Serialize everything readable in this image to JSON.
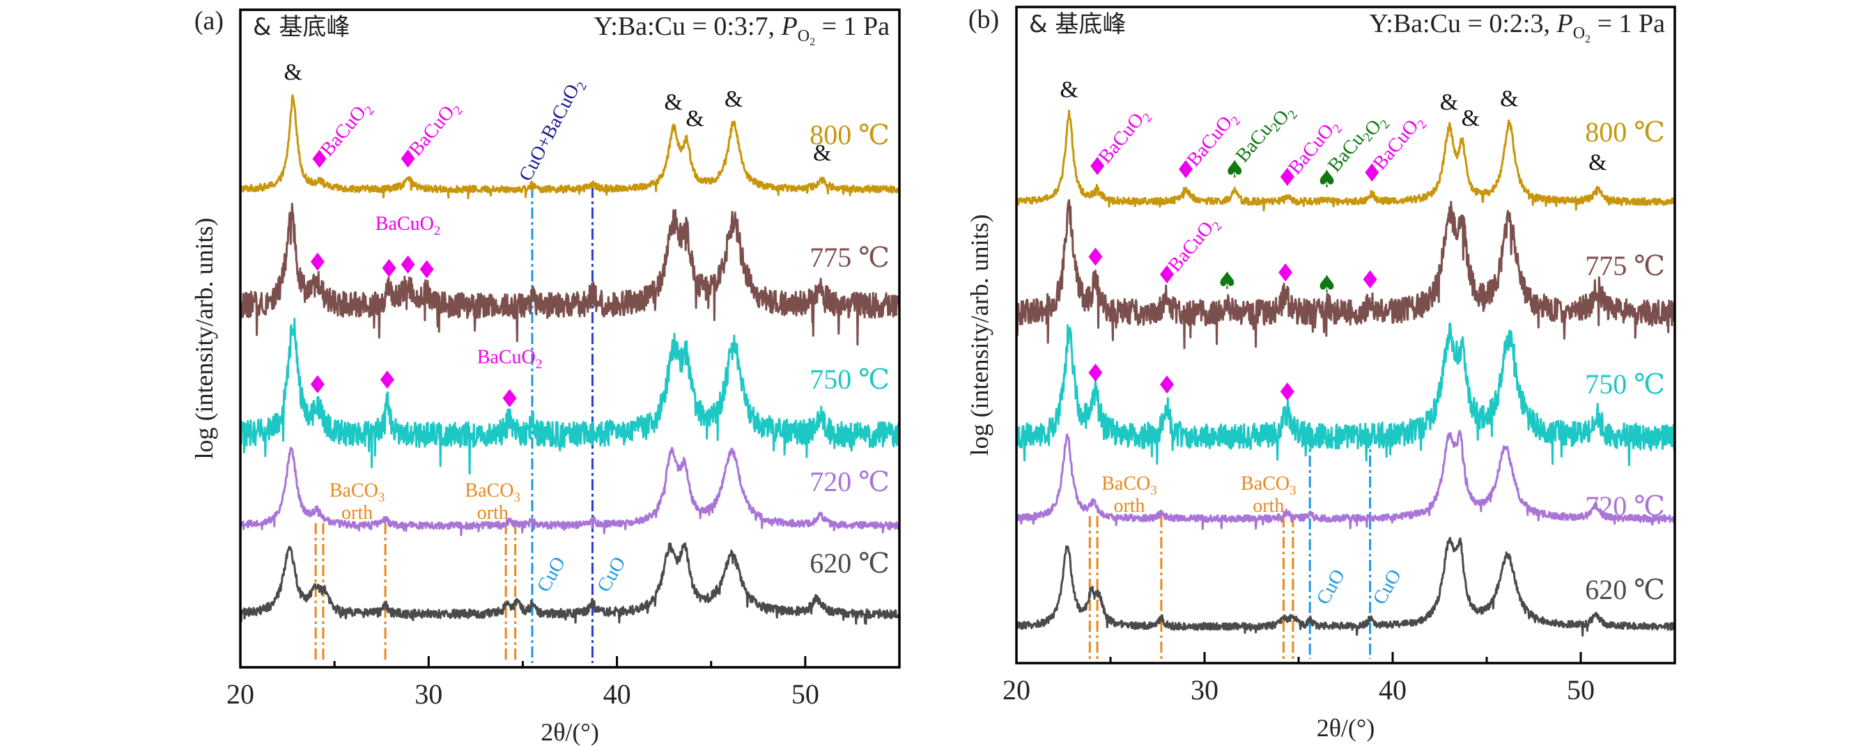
{
  "chart_data": [
    {
      "type": "line",
      "panel_tag": "(a)",
      "legend_text": "& 基底峰",
      "condition": {
        "ratio_text": "Y:Ba:Cu = 0:3:7, ",
        "p_symbol": "P",
        "p_sub": "O",
        "p_subsub": "2",
        "p_value": " = 1 Pa"
      },
      "xlabel": "2θ/(°)",
      "ylabel": "log (intensity/arb. units)",
      "xlim": [
        20,
        55
      ],
      "xticks": [
        20,
        30,
        40,
        50
      ],
      "minor_xticks": [
        25,
        35,
        45
      ],
      "yticks": [],
      "grid": false,
      "series": [
        {
          "name": "800 ℃",
          "label": "800 ℃",
          "color": "#C8960C",
          "noise": 0.35,
          "offset": 0.0,
          "peaks": [
            [
              22.8,
              9.5,
              0.25
            ],
            [
              24.2,
              0.7,
              0.25
            ],
            [
              28.9,
              1.0,
              0.3
            ],
            [
              35.5,
              0.5,
              0.12
            ],
            [
              38.7,
              0.5,
              0.2
            ],
            [
              43.0,
              5.9,
              0.32
            ],
            [
              43.7,
              4.0,
              0.25
            ],
            [
              46.2,
              6.7,
              0.38
            ],
            [
              50.9,
              0.9,
              0.3
            ]
          ]
        },
        {
          "name": "775 ℃",
          "label": "775 ℃",
          "color": "#7B4F4C",
          "noise": 1.3,
          "offset": -1.0,
          "peaks": [
            [
              22.7,
              9.5,
              0.3
            ],
            [
              24.1,
              2.0,
              0.3
            ],
            [
              27.9,
              1.5,
              0.2
            ],
            [
              28.9,
              2.0,
              0.35
            ],
            [
              29.9,
              1.4,
              0.2
            ],
            [
              35.5,
              1.0,
              0.1
            ],
            [
              38.7,
              1.4,
              0.15
            ],
            [
              43.0,
              7.7,
              0.45
            ],
            [
              43.7,
              5.3,
              0.3
            ],
            [
              46.2,
              8.6,
              0.5
            ],
            [
              50.8,
              2.0,
              0.25
            ]
          ]
        },
        {
          "name": "750 ℃",
          "label": "750 ℃",
          "color": "#1DC7C4",
          "noise": 1.3,
          "offset": -2.0,
          "peaks": [
            [
              22.8,
              11.5,
              0.3
            ],
            [
              24.1,
              2.5,
              0.3
            ],
            [
              27.8,
              3.5,
              0.18
            ],
            [
              34.3,
              1.6,
              0.2
            ],
            [
              35.5,
              1.2,
              0.12
            ],
            [
              43.0,
              8.0,
              0.45
            ],
            [
              43.7,
              5.8,
              0.3
            ],
            [
              46.2,
              9.0,
              0.5
            ],
            [
              50.8,
              1.8,
              0.25
            ]
          ]
        },
        {
          "name": "720 ℃",
          "label": "720 ℃",
          "color": "#A974D8",
          "noise": 0.35,
          "offset": -3.0,
          "peaks": [
            [
              22.7,
              7.8,
              0.33
            ],
            [
              24.1,
              1.3,
              0.3
            ],
            [
              27.7,
              0.6,
              0.2
            ],
            [
              34.3,
              0.5,
              0.2
            ],
            [
              35.5,
              0.6,
              0.12
            ],
            [
              38.7,
              0.6,
              0.15
            ],
            [
              42.9,
              7.0,
              0.4
            ],
            [
              43.6,
              4.5,
              0.28
            ],
            [
              46.1,
              7.5,
              0.55
            ],
            [
              50.8,
              0.9,
              0.25
            ]
          ]
        },
        {
          "name": "620 ℃",
          "label": "620 ℃",
          "color": "#4A4A4A",
          "noise": 0.45,
          "offset": -4.0,
          "peaks": [
            [
              22.6,
              6.7,
              0.38
            ],
            [
              24.0,
              2.2,
              0.3
            ],
            [
              24.5,
              1.7,
              0.25
            ],
            [
              27.7,
              0.9,
              0.15
            ],
            [
              34.2,
              1.0,
              0.2
            ],
            [
              34.7,
              1.0,
              0.2
            ],
            [
              35.5,
              0.9,
              0.15
            ],
            [
              38.7,
              1.0,
              0.2
            ],
            [
              42.8,
              6.0,
              0.45
            ],
            [
              43.6,
              5.5,
              0.3
            ],
            [
              46.1,
              5.9,
              0.6
            ],
            [
              50.6,
              1.5,
              0.3
            ]
          ]
        }
      ],
      "amp_marks": [
        {
          "x": 22.8,
          "series": 0,
          "above": 1.0
        },
        {
          "x": 43.0,
          "series": 0,
          "above": 1.0
        },
        {
          "x": 43.7,
          "series": 0,
          "above": 0.6
        },
        {
          "x": 46.2,
          "series": 0,
          "above": 1.0
        },
        {
          "x": 50.9,
          "series": 0,
          "above": 1.3
        }
      ],
      "diamond_marks": [
        {
          "x": 24.2,
          "series": 0,
          "label": "BaCuO2",
          "rotated": true
        },
        {
          "x": 28.9,
          "series": 0,
          "label": "BaCuO2",
          "rotated": true
        },
        {
          "x": 24.1,
          "series": 1
        },
        {
          "x": 27.9,
          "series": 1
        },
        {
          "x": 28.9,
          "series": 1
        },
        {
          "x": 29.9,
          "series": 1
        },
        {
          "x": 24.1,
          "series": 2
        },
        {
          "x": 27.8,
          "series": 2
        },
        {
          "x": 34.3,
          "series": 2
        }
      ],
      "spade_marks": [],
      "text_annotations": [
        {
          "text": "BaCuO2",
          "x": 28.9,
          "series": 1,
          "color": "#EE00EE",
          "kind": "horizontal"
        },
        {
          "text": "BaCuO2",
          "x": 34.3,
          "series": 2,
          "color": "#EE00EE",
          "kind": "horizontal"
        },
        {
          "text": "CuO+BaCuO2",
          "x": 37.4,
          "series": 0,
          "color": "#1A1A8C",
          "kind": "rotated"
        },
        {
          "text": "BaCO3",
          "sub": "orth",
          "x": 26.2,
          "series": 3,
          "color": "#E8881C",
          "kind": "stack"
        },
        {
          "text": "BaCO3",
          "sub": "orth",
          "x": 33.4,
          "series": 3,
          "color": "#E8881C",
          "kind": "stack"
        },
        {
          "text": "CuO",
          "x": 36.3,
          "series": 4,
          "color": "#1A9AE0",
          "kind": "rotated-short"
        },
        {
          "text": "CuO",
          "x": 39.5,
          "series": 4,
          "color": "#1A9AE0",
          "kind": "rotated-short"
        }
      ],
      "reference_lines": [
        {
          "x": 24.0,
          "from_series": 3,
          "color": "#E8881C",
          "label": "BaCO3 orth"
        },
        {
          "x": 24.4,
          "from_series": 3,
          "color": "#E8881C",
          "label": "BaCO3 orth"
        },
        {
          "x": 27.7,
          "from_series": 3,
          "color": "#E8881C",
          "label": "BaCO3 orth"
        },
        {
          "x": 34.1,
          "from_series": 3,
          "color": "#E8881C",
          "label": "BaCO3 orth"
        },
        {
          "x": 34.6,
          "from_series": 3,
          "color": "#E8881C",
          "label": "BaCO3 orth"
        },
        {
          "x": 35.5,
          "from_series": 0,
          "color": "#1A9AE0",
          "label": "CuO"
        },
        {
          "x": 38.7,
          "from_series": 0,
          "color": "#2A3AD8",
          "label": "CuO+BaCuO2"
        }
      ]
    },
    {
      "type": "line",
      "panel_tag": "(b)",
      "legend_text": "& 基底峰",
      "condition": {
        "ratio_text": "Y:Ba:Cu = 0:2:3, ",
        "p_symbol": "P",
        "p_sub": "O",
        "p_subsub": "2",
        "p_value": " = 1 Pa"
      },
      "xlabel": "2θ/(°)",
      "ylabel": "log (intensity/arb. units)",
      "xlim": [
        20,
        55
      ],
      "xticks": [
        20,
        30,
        40,
        50
      ],
      "minor_xticks": [
        25,
        35,
        45
      ],
      "yticks": [],
      "grid": false,
      "series": [
        {
          "name": "800 ℃",
          "label": "800 ℃",
          "color": "#C8960C",
          "noise": 0.35,
          "offset": 0.0,
          "peaks": [
            [
              22.8,
              9.0,
              0.25
            ],
            [
              24.3,
              1.3,
              0.2
            ],
            [
              29.0,
              1.2,
              0.3
            ],
            [
              31.6,
              1.2,
              0.15
            ],
            [
              34.4,
              0.4,
              0.2
            ],
            [
              36.5,
              0.2,
              0.2
            ],
            [
              38.9,
              0.8,
              0.15
            ],
            [
              43.0,
              7.3,
              0.32
            ],
            [
              43.7,
              5.0,
              0.22
            ],
            [
              46.2,
              8.0,
              0.35
            ],
            [
              50.9,
              1.3,
              0.25
            ]
          ]
        },
        {
          "name": "775 ℃",
          "label": "775 ℃",
          "color": "#7B4F4C",
          "noise": 1.3,
          "offset": -1.0,
          "peaks": [
            [
              22.8,
              10.5,
              0.3
            ],
            [
              24.2,
              3.2,
              0.18
            ],
            [
              28.0,
              1.8,
              0.2
            ],
            [
              31.2,
              1.2,
              0.15
            ],
            [
              34.3,
              2.0,
              0.2
            ],
            [
              36.5,
              0.8,
              0.2
            ],
            [
              38.8,
              1.2,
              0.15
            ],
            [
              43.0,
              9.0,
              0.4
            ],
            [
              43.7,
              7.5,
              0.3
            ],
            [
              46.2,
              9.4,
              0.45
            ],
            [
              50.9,
              2.5,
              0.3
            ]
          ]
        },
        {
          "name": "750 ℃",
          "label": "750 ℃",
          "color": "#1DC7C4",
          "noise": 1.3,
          "offset": -2.0,
          "peaks": [
            [
              22.8,
              10.8,
              0.3
            ],
            [
              24.2,
              4.0,
              0.3
            ],
            [
              28.0,
              3.2,
              0.2
            ],
            [
              34.4,
              2.5,
              0.3
            ],
            [
              43.0,
              9.2,
              0.45
            ],
            [
              43.7,
              6.2,
              0.3
            ],
            [
              46.2,
              10.0,
              0.5
            ],
            [
              50.9,
              2.0,
              0.25
            ]
          ]
        },
        {
          "name": "720 ℃",
          "label": "720 ℃",
          "color": "#A974D8",
          "noise": 0.35,
          "offset": -3.0,
          "peaks": [
            [
              22.7,
              8.4,
              0.3
            ],
            [
              24.1,
              1.4,
              0.25
            ],
            [
              27.7,
              0.5,
              0.2
            ],
            [
              34.4,
              0.6,
              0.2
            ],
            [
              35.6,
              0.5,
              0.12
            ],
            [
              43.0,
              7.6,
              0.4
            ],
            [
              43.6,
              6.0,
              0.25
            ],
            [
              46.0,
              7.2,
              0.5
            ],
            [
              50.8,
              1.2,
              0.25
            ]
          ]
        },
        {
          "name": "620 ℃",
          "label": "620 ℃",
          "color": "#4A4A4A",
          "noise": 0.35,
          "offset": -4.0,
          "peaks": [
            [
              22.7,
              8.2,
              0.3
            ],
            [
              24.0,
              2.8,
              0.25
            ],
            [
              24.4,
              2.3,
              0.25
            ],
            [
              27.7,
              0.9,
              0.15
            ],
            [
              34.2,
              0.8,
              0.2
            ],
            [
              34.7,
              1.0,
              0.2
            ],
            [
              35.6,
              0.7,
              0.12
            ],
            [
              38.8,
              0.7,
              0.15
            ],
            [
              43.0,
              7.8,
              0.4
            ],
            [
              43.6,
              6.0,
              0.25
            ],
            [
              46.1,
              7.2,
              0.55
            ],
            [
              50.8,
              1.1,
              0.25
            ]
          ]
        }
      ],
      "amp_marks": [
        {
          "x": 22.8,
          "series": 0,
          "above": 1.0
        },
        {
          "x": 43.0,
          "series": 0,
          "above": 0.9
        },
        {
          "x": 43.7,
          "series": 0,
          "above": 0.7
        },
        {
          "x": 46.2,
          "series": 0,
          "above": 1.0
        },
        {
          "x": 50.9,
          "series": 0,
          "above": 1.2
        }
      ],
      "diamond_marks": [
        {
          "x": 24.3,
          "series": 0,
          "label": "BaCuO2",
          "rotated": true
        },
        {
          "x": 29.0,
          "series": 0,
          "label": "BaCuO2",
          "rotated": true
        },
        {
          "x": 34.4,
          "series": 0,
          "label": "BaCuO2",
          "rotated": true
        },
        {
          "x": 38.9,
          "series": 0,
          "label": "BaCuO2",
          "rotated": true
        },
        {
          "x": 24.2,
          "series": 1
        },
        {
          "x": 28.0,
          "series": 1,
          "label": "BaCuO2",
          "rotated": true
        },
        {
          "x": 34.3,
          "series": 1
        },
        {
          "x": 38.8,
          "series": 1
        },
        {
          "x": 24.2,
          "series": 2
        },
        {
          "x": 28.0,
          "series": 2
        },
        {
          "x": 34.4,
          "series": 2
        }
      ],
      "spade_marks": [
        {
          "x": 31.6,
          "series": 0,
          "label": "BaCu2O2",
          "rotated": true
        },
        {
          "x": 36.5,
          "series": 0,
          "label": "BaCu2O2",
          "rotated": true
        },
        {
          "x": 31.2,
          "series": 1
        },
        {
          "x": 36.5,
          "series": 1
        }
      ],
      "text_annotations": [
        {
          "text": "BaCO3",
          "sub": "orth",
          "x": 26.0,
          "series": 3,
          "color": "#E8881C",
          "kind": "stack"
        },
        {
          "text": "BaCO3",
          "sub": "orth",
          "x": 33.4,
          "series": 3,
          "color": "#E8881C",
          "kind": "stack"
        },
        {
          "text": "CuO",
          "x": 36.5,
          "series": 4,
          "color": "#1A9AE0",
          "kind": "rotated-short"
        },
        {
          "text": "CuO",
          "x": 39.5,
          "series": 4,
          "color": "#1A9AE0",
          "kind": "rotated-short"
        }
      ],
      "reference_lines": [
        {
          "x": 23.9,
          "from_series": 3,
          "color": "#E8881C",
          "label": "BaCO3 orth"
        },
        {
          "x": 24.3,
          "from_series": 3,
          "color": "#E8881C",
          "label": "BaCO3 orth"
        },
        {
          "x": 27.7,
          "from_series": 3,
          "color": "#E8881C",
          "label": "BaCO3 orth"
        },
        {
          "x": 34.2,
          "from_series": 3,
          "color": "#E8881C",
          "label": "BaCO3 orth"
        },
        {
          "x": 34.7,
          "from_series": 3,
          "color": "#E8881C",
          "label": "BaCO3 orth"
        },
        {
          "x": 35.6,
          "from_series": 2,
          "color": "#1A9AE0",
          "label": "CuO"
        },
        {
          "x": 38.8,
          "from_series": 2,
          "color": "#1A9AE0",
          "label": "CuO"
        }
      ]
    }
  ]
}
